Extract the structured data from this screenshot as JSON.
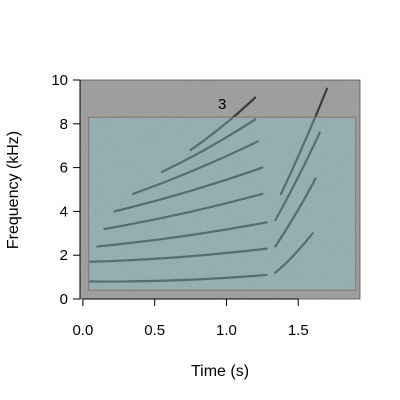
{
  "chart_data": {
    "type": "heatmap",
    "title": "",
    "xlabel": "Time (s)",
    "ylabel": "Frequency (kHz)",
    "xlim": [
      -0.02,
      1.93
    ],
    "ylim": [
      0,
      10
    ],
    "xticks": [
      {
        "value": 0.0,
        "label": "0.0"
      },
      {
        "value": 0.5,
        "label": "0.5"
      },
      {
        "value": 1.0,
        "label": "1.0"
      },
      {
        "value": 1.5,
        "label": "1.5"
      }
    ],
    "yticks": [
      {
        "value": 0,
        "label": "0"
      },
      {
        "value": 2,
        "label": "2"
      },
      {
        "value": 4,
        "label": "4"
      },
      {
        "value": 6,
        "label": "6"
      },
      {
        "value": 8,
        "label": "8"
      },
      {
        "value": 10,
        "label": "10"
      }
    ],
    "selection_box": {
      "t_start": 0.04,
      "t_end": 1.9,
      "f_low": 0.4,
      "f_high": 8.3,
      "fill_color": "#7fcfd8",
      "fill_opacity": 0.35,
      "border_color": "#8a6f6a"
    },
    "annotations": [
      {
        "text": "3",
        "t": 0.97,
        "f": 8.9
      }
    ],
    "colors": {
      "background": "#9a9a9a",
      "harmonic": "#2a2a2a"
    },
    "harmonics": [
      {
        "t_start": 0.05,
        "t_end": 1.28,
        "f_start": 0.8,
        "f_end": 1.1
      },
      {
        "t_start": 0.05,
        "t_end": 1.28,
        "f_start": 1.7,
        "f_end": 2.3
      },
      {
        "t_start": 0.1,
        "t_end": 1.28,
        "f_start": 2.4,
        "f_end": 3.5
      },
      {
        "t_start": 0.15,
        "t_end": 1.25,
        "f_start": 3.2,
        "f_end": 4.8
      },
      {
        "t_start": 0.22,
        "t_end": 1.25,
        "f_start": 4.0,
        "f_end": 6.0
      },
      {
        "t_start": 0.35,
        "t_end": 1.22,
        "f_start": 4.8,
        "f_end": 7.2
      },
      {
        "t_start": 0.55,
        "t_end": 1.2,
        "f_start": 5.8,
        "f_end": 8.2
      },
      {
        "t_start": 0.75,
        "t_end": 1.2,
        "f_start": 6.8,
        "f_end": 9.2
      },
      {
        "t_start": 1.34,
        "t_end": 1.6,
        "f_start": 1.2,
        "f_end": 3.0
      },
      {
        "t_start": 1.34,
        "t_end": 1.62,
        "f_start": 2.4,
        "f_end": 5.5
      },
      {
        "t_start": 1.34,
        "t_end": 1.65,
        "f_start": 3.6,
        "f_end": 7.6
      },
      {
        "t_start": 1.38,
        "t_end": 1.7,
        "f_start": 4.8,
        "f_end": 9.6
      }
    ]
  }
}
